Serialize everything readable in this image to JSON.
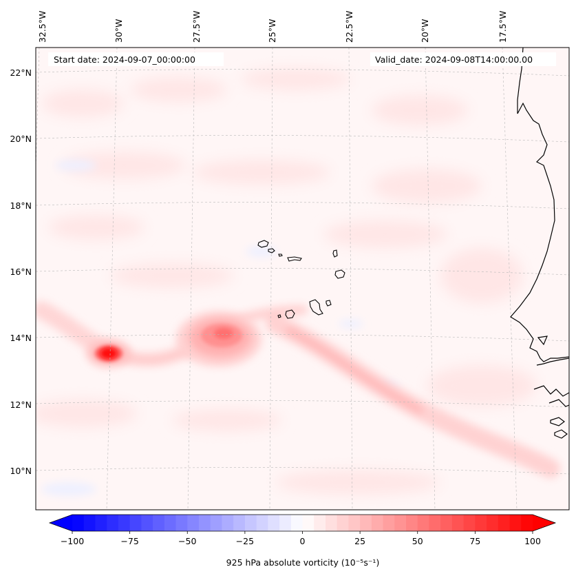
{
  "annotations": {
    "start_date": "Start date: 2024-09-07_00:00:00",
    "valid_date": "Valid_date: 2024-09-08T14:00:00.00"
  },
  "map": {
    "region": "Cape Verde / West African coast",
    "lon_labels": [
      "32.5°W",
      "30°W",
      "27.5°W",
      "25°W",
      "22.5°W",
      "20°W",
      "17.5°W"
    ],
    "lat_labels": [
      "22°N",
      "20°N",
      "18°N",
      "16°N",
      "14°N",
      "12°N",
      "10°N"
    ],
    "features": [
      {
        "name": "storm-center-1",
        "lon": -30.1,
        "lat": 13.6,
        "vorticity": 100
      },
      {
        "name": "storm-center-2",
        "lon": -26.0,
        "lat": 14.1,
        "vorticity": 45
      }
    ]
  },
  "colorbar": {
    "label": "925 hPa absolute vorticity (10⁻⁵s⁻¹)",
    "ticks": [
      "−100",
      "−75",
      "−50",
      "−25",
      "0",
      "25",
      "50",
      "75",
      "100"
    ],
    "vmin": -100,
    "vmax": 100,
    "cmap": "bwr",
    "low_color": "#0000ff",
    "mid_color": "#ffffff",
    "high_color": "#ff0000"
  }
}
